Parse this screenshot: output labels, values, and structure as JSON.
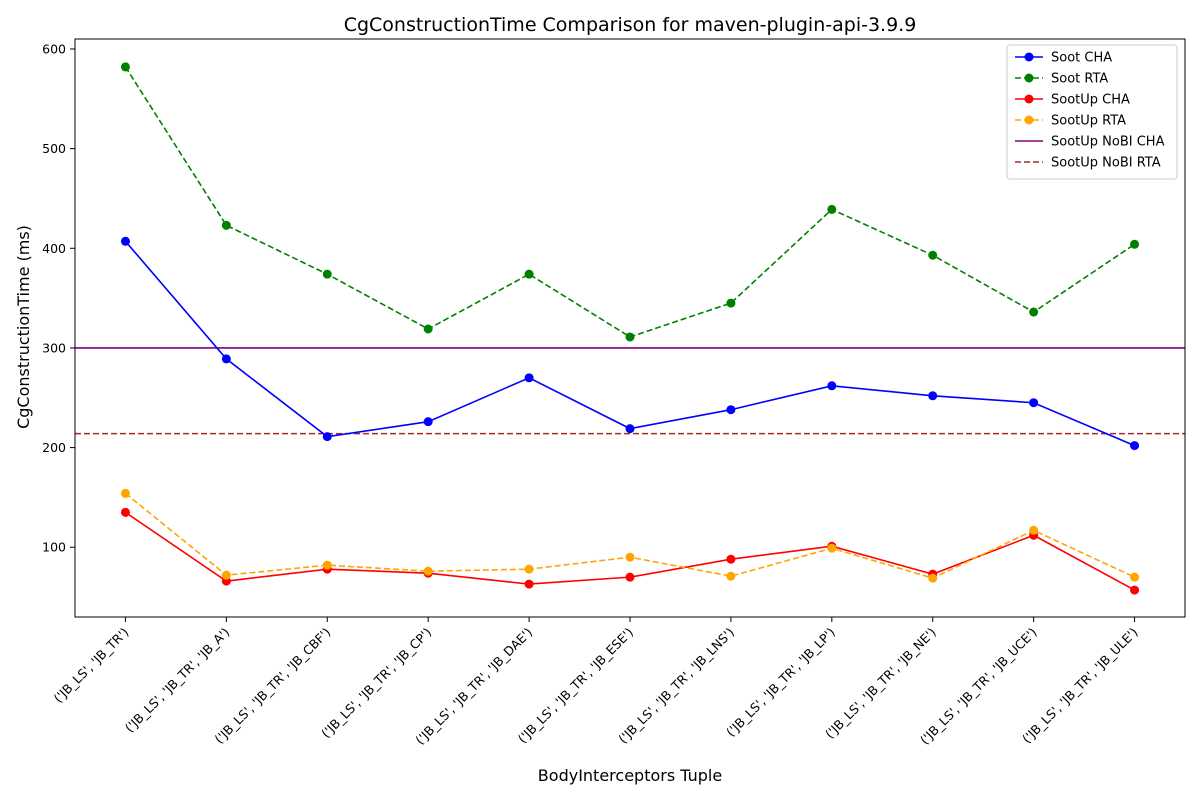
{
  "chart_data": {
    "type": "line",
    "title": "CgConstructionTime Comparison for maven-plugin-api-3.9.9",
    "xlabel": "BodyInterceptors Tuple",
    "ylabel": "CgConstructionTime (ms)",
    "ylim": [
      30,
      610
    ],
    "yticks": [
      100,
      200,
      300,
      400,
      500,
      600
    ],
    "grid": false,
    "legend_position": "top-right",
    "categories": [
      "('JB_LS', 'JB_TR')",
      "('JB_LS', 'JB_TR', 'JB_A')",
      "('JB_LS', 'JB_TR', 'JB_CBF')",
      "('JB_LS', 'JB_TR', 'JB_CP')",
      "('JB_LS', 'JB_TR', 'JB_DAE')",
      "('JB_LS', 'JB_TR', 'JB_ESE')",
      "('JB_LS', 'JB_TR', 'JB_LNS')",
      "('JB_LS', 'JB_TR', 'JB_LP')",
      "('JB_LS', 'JB_TR', 'JB_NE')",
      "('JB_LS', 'JB_TR', 'JB_UCE')",
      "('JB_LS', 'JB_TR', 'JB_ULE')"
    ],
    "series": [
      {
        "name": "Soot CHA",
        "color": "#0000ff",
        "dash": "solid",
        "marker": true,
        "values": [
          407,
          289,
          211,
          226,
          270,
          219,
          238,
          262,
          252,
          245,
          202
        ]
      },
      {
        "name": "Soot RTA",
        "color": "#008000",
        "dash": "dashed",
        "marker": true,
        "values": [
          582,
          423,
          374,
          319,
          374,
          311,
          345,
          439,
          393,
          336,
          404
        ]
      },
      {
        "name": "SootUp CHA",
        "color": "#ff0000",
        "dash": "solid",
        "marker": true,
        "values": [
          135,
          66,
          78,
          74,
          63,
          70,
          88,
          101,
          73,
          112,
          57
        ]
      },
      {
        "name": "SootUp RTA",
        "color": "#ffa500",
        "dash": "dashed",
        "marker": true,
        "values": [
          154,
          72,
          82,
          76,
          78,
          90,
          71,
          99,
          69,
          117,
          70
        ]
      }
    ],
    "reference_lines": [
      {
        "name": "SootUp NoBI CHA",
        "color": "#800080",
        "dash": "solid",
        "value": 300
      },
      {
        "name": "SootUp NoBI RTA",
        "color": "#a52a2a",
        "dash": "dashed",
        "value": 214
      }
    ]
  }
}
